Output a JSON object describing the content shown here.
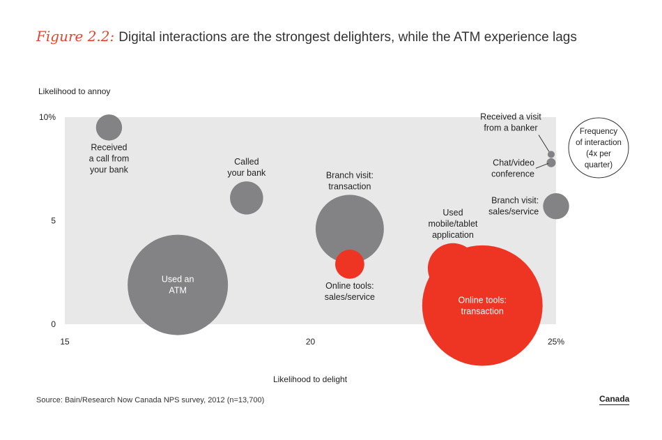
{
  "figure": {
    "label": "Figure 2.2:",
    "title": "Digital interactions are the strongest delighters, while the ATM experience lags"
  },
  "colors": {
    "accent": "#e8432f",
    "gray_bubble": "#838385",
    "red_bubble": "#ee3524",
    "plot_bg": "#e8e8e8"
  },
  "chart_data": {
    "type": "scatter",
    "title": "Digital interactions are the strongest delighters, while the ATM experience lags",
    "xlabel": "Likelihood to delight",
    "ylabel": "Likelihood to annoy",
    "xlim": [
      15,
      25
    ],
    "ylim": [
      0,
      10
    ],
    "x_ticks": [
      "15",
      "20",
      "25%"
    ],
    "y_ticks": [
      "0",
      "5",
      "10%"
    ],
    "grid": false,
    "bubble_size_meaning": "Frequency of interaction (4x per quarter)",
    "legend": {
      "lines": [
        "Frequency",
        "of interaction",
        "(4x per",
        "quarter)"
      ]
    },
    "points": [
      {
        "name": "Received a call from your bank",
        "x": 15.9,
        "y": 9.5,
        "size": 0.26,
        "color": "gray",
        "label": [
          "Received",
          "a call from",
          "your bank"
        ],
        "label_pos": "below",
        "label_inside": false
      },
      {
        "name": "Called your bank",
        "x": 18.7,
        "y": 6.1,
        "size": 0.33,
        "color": "gray",
        "label": [
          "Called",
          "your bank"
        ],
        "label_pos": "above",
        "label_inside": false
      },
      {
        "name": "Used an ATM",
        "x": 17.3,
        "y": 1.9,
        "size": 1.0,
        "color": "gray",
        "label": [
          "Used an",
          "ATM"
        ],
        "label_pos": "inside",
        "label_inside": true
      },
      {
        "name": "Branch visit: transaction",
        "x": 20.8,
        "y": 4.6,
        "size": 0.68,
        "color": "gray",
        "label": [
          "Branch visit:",
          "transaction"
        ],
        "label_pos": "above",
        "label_inside": false
      },
      {
        "name": "Online tools: sales/service",
        "x": 20.8,
        "y": 2.9,
        "size": 0.29,
        "color": "red",
        "label": [
          "Online tools:",
          "sales/service"
        ],
        "label_pos": "below",
        "label_inside": false
      },
      {
        "name": "Used mobile/tablet application",
        "x": 22.9,
        "y": 2.7,
        "size": 0.5,
        "color": "red",
        "label": [
          "Used",
          "mobile/tablet",
          "application"
        ],
        "label_pos": "above",
        "label_inside": false
      },
      {
        "name": "Online tools: transaction",
        "x": 23.5,
        "y": 0.9,
        "size": 1.2,
        "color": "red",
        "label": [
          "Online tools:",
          "transaction"
        ],
        "label_pos": "inside",
        "label_inside": true
      },
      {
        "name": "Received a visit from a banker",
        "x": 24.9,
        "y": 8.2,
        "size": 0.07,
        "color": "gray",
        "label": [
          "Received a visit",
          "from a banker"
        ],
        "label_pos": "above-left",
        "label_inside": false
      },
      {
        "name": "Chat/video conference",
        "x": 24.9,
        "y": 7.8,
        "size": 0.09,
        "color": "gray",
        "label": [
          "Chat/video",
          "conference"
        ],
        "label_pos": "left",
        "label_inside": false
      },
      {
        "name": "Branch visit: sales/service",
        "x": 25.0,
        "y": 5.7,
        "size": 0.26,
        "color": "gray",
        "label": [
          "Branch visit:",
          "sales/service"
        ],
        "label_pos": "left",
        "label_inside": false
      }
    ]
  },
  "footer": {
    "source": "Source: Bain/Research Now Canada NPS survey, 2012 (n=13,700)",
    "region": "Canada"
  }
}
